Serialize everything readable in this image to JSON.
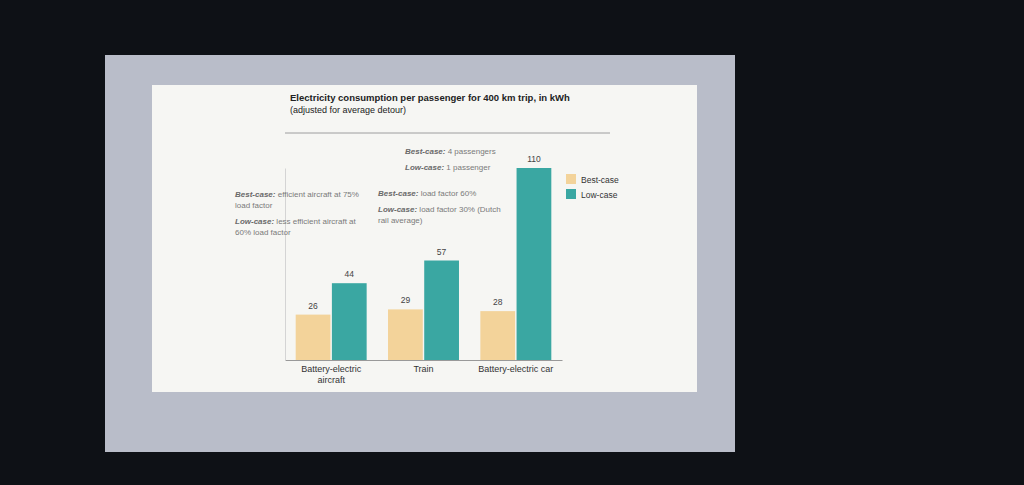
{
  "chart_data": {
    "type": "bar",
    "title": "Electricity consumption per passenger for 400 km trip, in kWh",
    "subtitle": "(adjusted for average detour)",
    "categories": [
      "Battery-electric aircraft",
      "Train",
      "Battery-electric car"
    ],
    "series": [
      {
        "name": "Best-case",
        "color": "#f3d39a",
        "values": [
          26,
          29,
          28
        ]
      },
      {
        "name": "Low-case",
        "color": "#3aa7a2",
        "values": [
          44,
          57,
          110
        ]
      }
    ],
    "annotations": [
      [
        "Best-case: efficient aircraft at 75% load factor",
        "Low-case: less efficient aircraft at 60% load factor"
      ],
      [
        "Best-case: load factor 60%",
        "Low-case: load factor 30% (Dutch rail average)"
      ],
      [
        "Best-case: 4 passengers",
        "Low-case: 1 passenger"
      ]
    ],
    "ylim": [
      0,
      110
    ],
    "data_labels": true,
    "legend": "top-right",
    "tick_labels": "x"
  }
}
